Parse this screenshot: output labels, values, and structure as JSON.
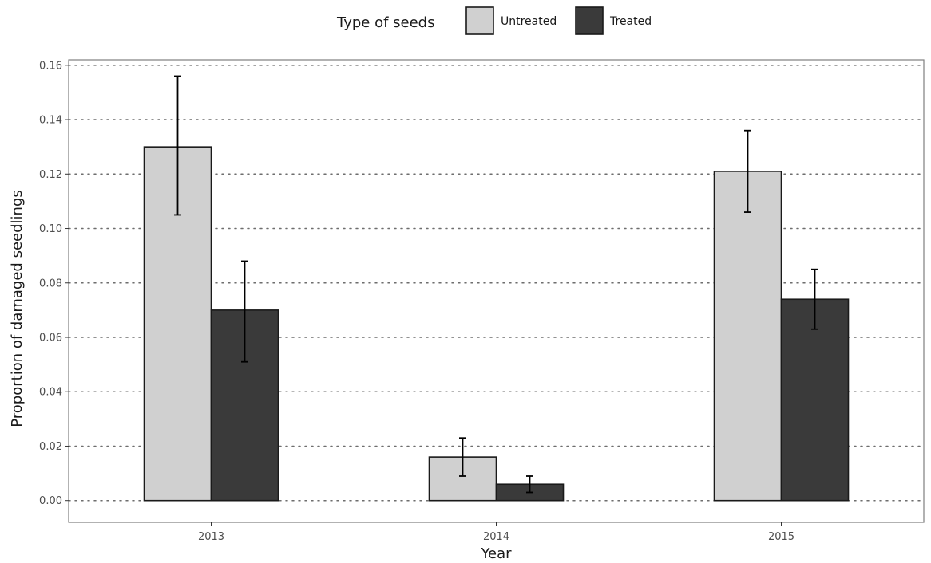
{
  "chart_data": {
    "type": "bar",
    "xlabel": "Year",
    "ylabel": "Proportion of damaged seedlings",
    "categories": [
      "2013",
      "2014",
      "2015"
    ],
    "ylim": [
      -0.008,
      0.162
    ],
    "yticks": [
      0.0,
      0.02,
      0.04,
      0.06,
      0.08,
      0.1,
      0.12,
      0.14,
      0.16
    ],
    "ytick_labels": [
      "0.00",
      "0.02",
      "0.04",
      "0.06",
      "0.08",
      "0.10",
      "0.12",
      "0.14",
      "0.16"
    ],
    "grid": "horizontal dotted",
    "legend": {
      "title": "Type of seeds",
      "position": "top"
    },
    "series": [
      {
        "name": "Untreated",
        "color": "#d0d0d0",
        "values": [
          0.13,
          0.016,
          0.121
        ],
        "error_low": [
          0.105,
          0.009,
          0.106
        ],
        "error_high": [
          0.156,
          0.023,
          0.136
        ]
      },
      {
        "name": "Treated",
        "color": "#3a3a3a",
        "values": [
          0.07,
          0.006,
          0.074
        ],
        "error_low": [
          0.051,
          0.003,
          0.063
        ],
        "error_high": [
          0.088,
          0.009,
          0.085
        ]
      }
    ]
  }
}
